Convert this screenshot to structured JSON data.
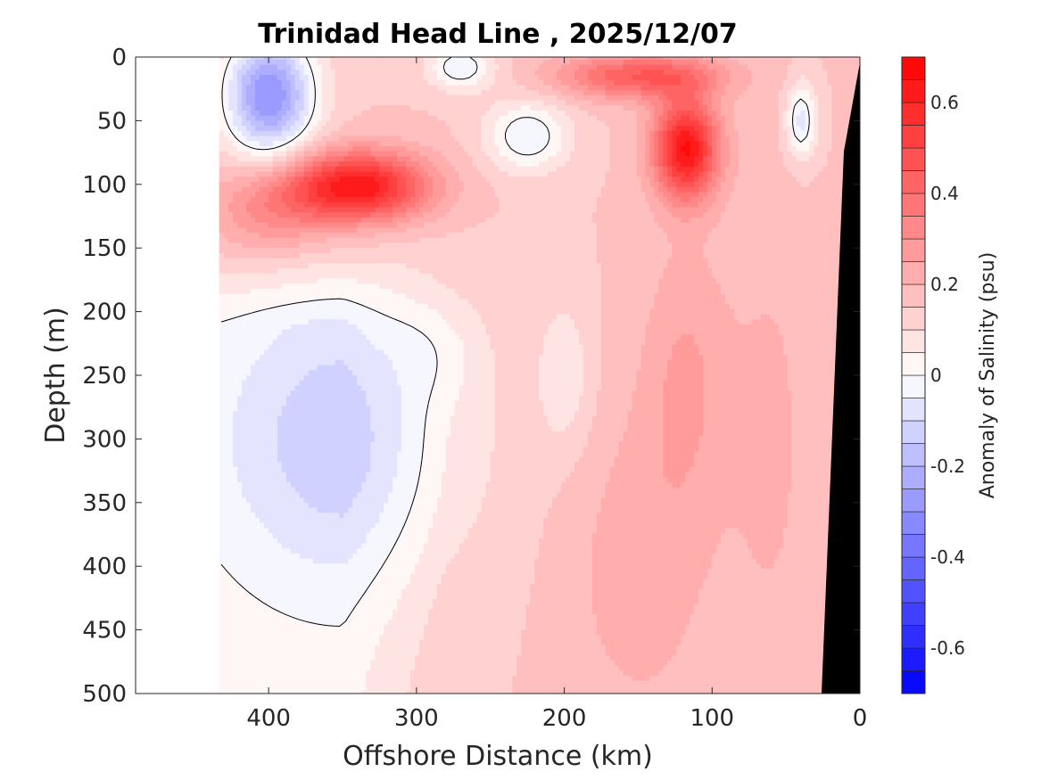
{
  "chart_data": {
    "type": "heatmap",
    "subtype": "filled contour section",
    "title": "Trinidad Head Line , 2025/12/07",
    "xlabel": "Offshore Distance (km)",
    "ylabel": "Depth (m)",
    "colorbar_label": "Anomaly of Salinity (psu)",
    "xlim": [
      490,
      0
    ],
    "ylim": [
      500,
      0
    ],
    "x_reversed": true,
    "y_reversed": true,
    "x_ticks": [
      400,
      300,
      200,
      100,
      0
    ],
    "x_tick_labels": [
      "400",
      "300",
      "200",
      "100",
      "0"
    ],
    "y_ticks": [
      0,
      50,
      100,
      150,
      200,
      250,
      300,
      350,
      400,
      450,
      500
    ],
    "y_tick_labels": [
      "0",
      "50",
      "100",
      "150",
      "200",
      "250",
      "300",
      "350",
      "400",
      "450",
      "500"
    ],
    "colorbar": {
      "range": [
        -0.7,
        0.7
      ],
      "step": 0.05,
      "ticks": [
        -0.6,
        -0.4,
        -0.2,
        0,
        0.2,
        0.4,
        0.6
      ],
      "tick_labels": [
        "-0.6",
        "-0.4",
        "-0.2",
        "0",
        "0.2",
        "0.4",
        "0.6"
      ],
      "colormap": "blue-white-red",
      "low_color": "#0000ff",
      "mid_color": "#ffffff",
      "high_color": "#ff0000"
    },
    "data_extent": {
      "x_max_km": 432,
      "z_max_m": 500
    },
    "features": [
      {
        "x": 400,
        "z": 30,
        "value": -0.3
      },
      {
        "x": 340,
        "z": 102,
        "value": 0.6
      },
      {
        "x": 118,
        "z": 72,
        "value": 0.65
      },
      {
        "x": 150,
        "z": 15,
        "value": 0.45
      },
      {
        "x": 230,
        "z": 60,
        "value": -0.08
      },
      {
        "x": 40,
        "z": 50,
        "value": -0.08
      },
      {
        "x": 150,
        "z": 350,
        "value": 0.22
      },
      {
        "x": 60,
        "z": 300,
        "value": 0.2
      }
    ],
    "zero_contour": true,
    "bathymetry_color": "#000000",
    "grid": false
  }
}
